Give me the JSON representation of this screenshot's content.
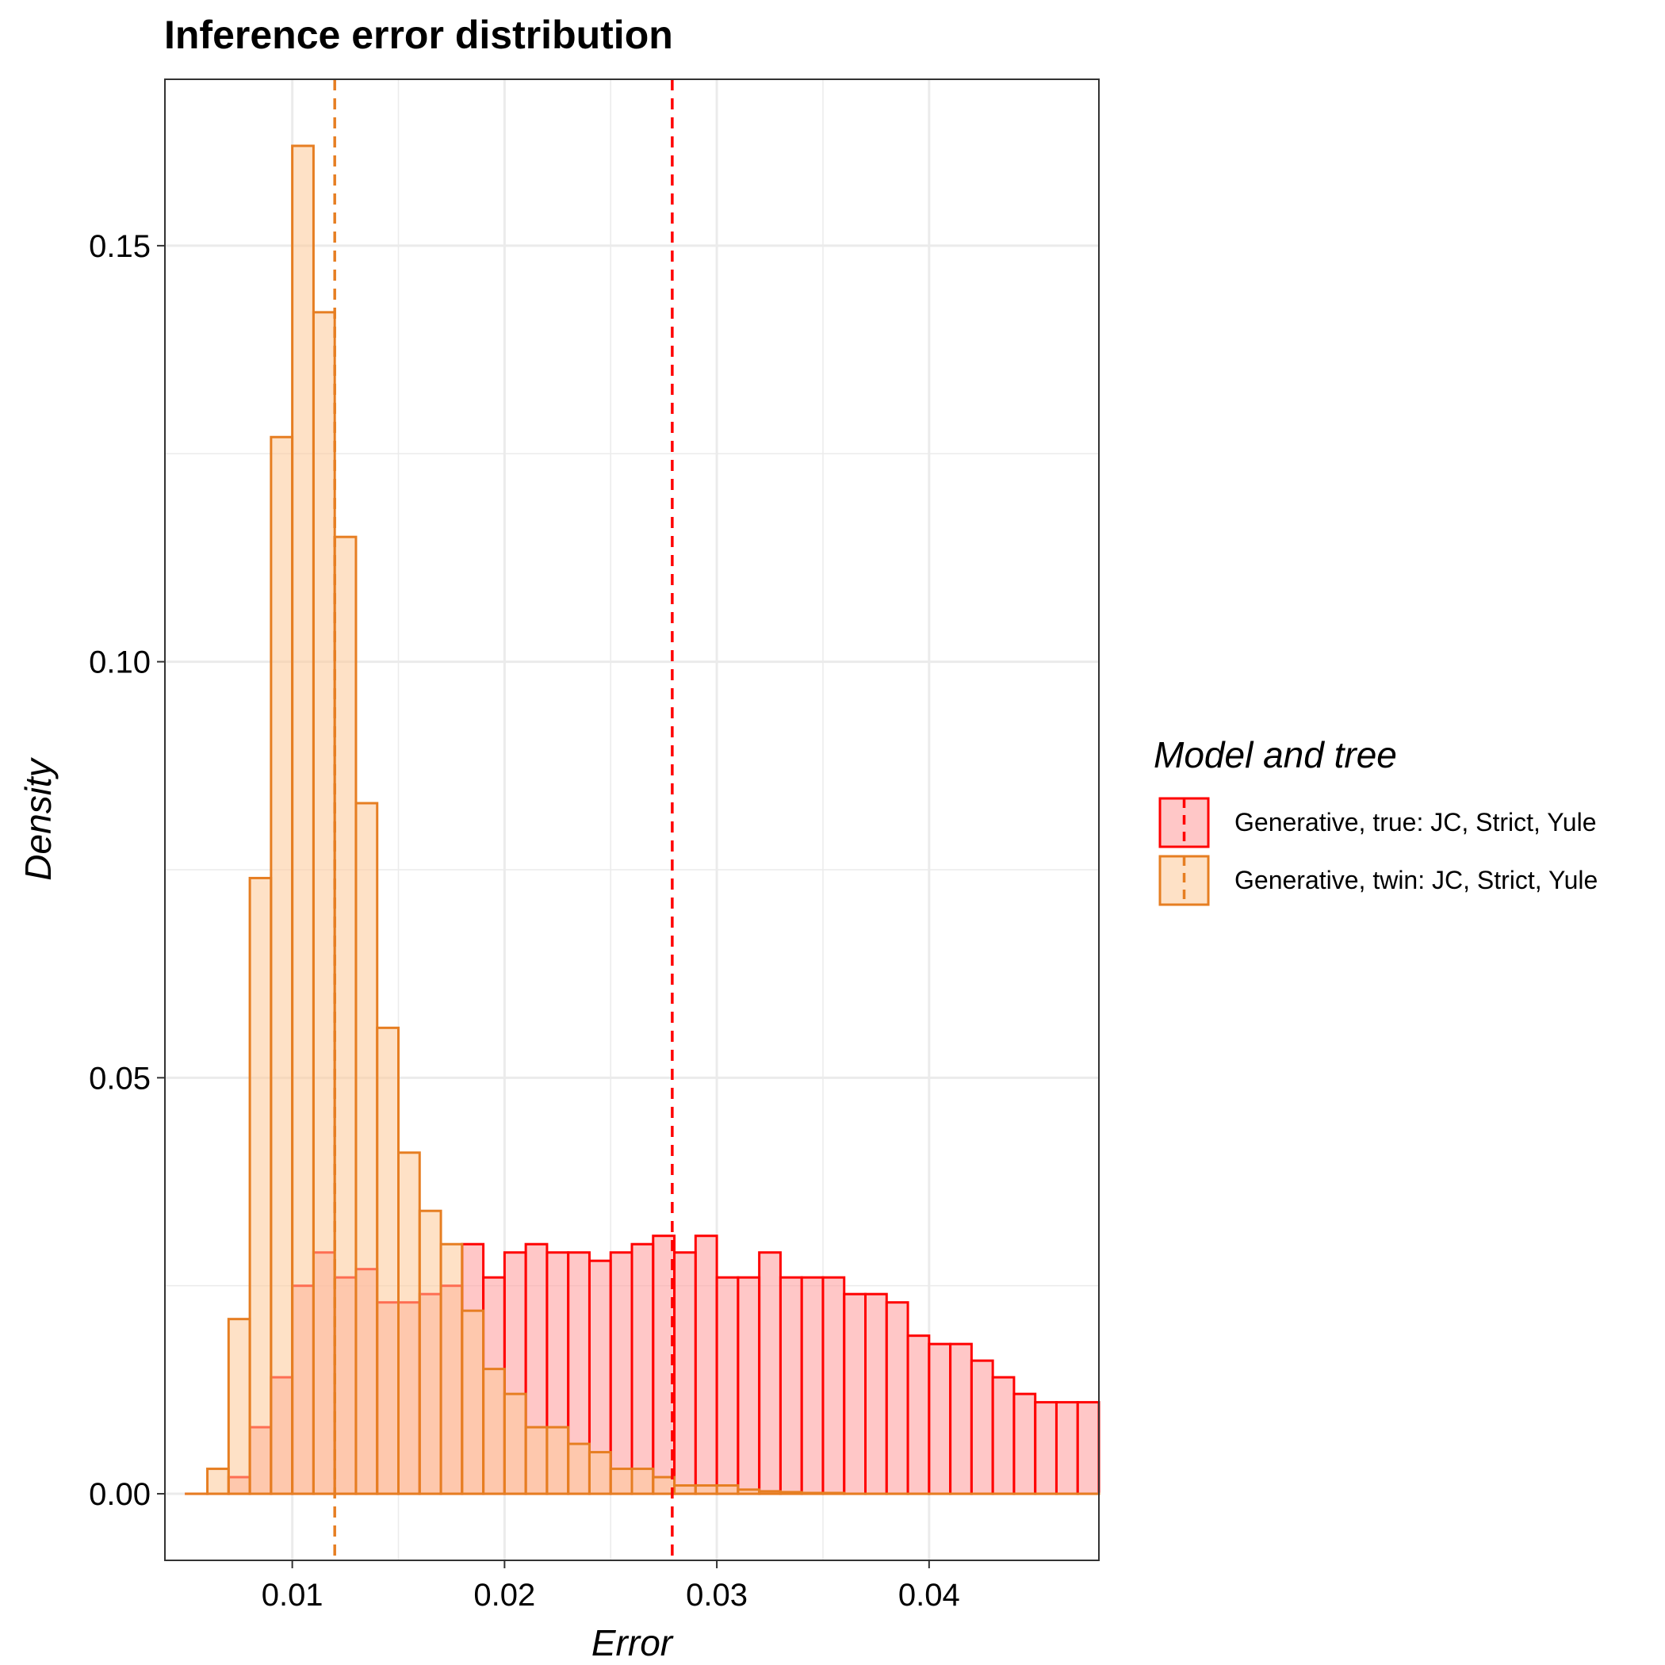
{
  "chart_data": {
    "type": "bar",
    "title": "Inference error distribution",
    "xlabel": "Error",
    "ylabel": "Density",
    "xlim": [
      0.004,
      0.048
    ],
    "ylim": [
      -0.008,
      0.17
    ],
    "x_ticks": [
      {
        "value": 0.01,
        "label": "0.01"
      },
      {
        "value": 0.02,
        "label": "0.02"
      },
      {
        "value": 0.03,
        "label": "0.03"
      },
      {
        "value": 0.04,
        "label": "0.04"
      }
    ],
    "y_ticks": [
      {
        "value": 0.0,
        "label": "0.00"
      },
      {
        "value": 0.05,
        "label": "0.05"
      },
      {
        "value": 0.1,
        "label": "0.10"
      },
      {
        "value": 0.15,
        "label": "0.15"
      }
    ],
    "grid": true,
    "legend": {
      "title": "Model and tree",
      "position": "right"
    },
    "bin_start": 0.005,
    "bin_width": 0.001,
    "series": [
      {
        "name": "Generative, true: JC, Strict, Yule",
        "fill": "#ff9999",
        "stroke": "#ff0000",
        "mean": 0.0279,
        "values": [
          0.0,
          0.0,
          0.002,
          0.008,
          0.014,
          0.025,
          0.029,
          0.026,
          0.027,
          0.023,
          0.023,
          0.024,
          0.025,
          0.03,
          0.026,
          0.029,
          0.03,
          0.029,
          0.029,
          0.028,
          0.029,
          0.03,
          0.031,
          0.029,
          0.031,
          0.026,
          0.026,
          0.029,
          0.026,
          0.026,
          0.026,
          0.024,
          0.024,
          0.023,
          0.019,
          0.018,
          0.018,
          0.016,
          0.014,
          0.012,
          0.011,
          0.011,
          0.011
        ]
      },
      {
        "name": "Generative, twin: JC, Strict, Yule",
        "fill": "#fdc998",
        "stroke": "#e67e22",
        "mean": 0.012,
        "values": [
          0.0,
          0.003,
          0.021,
          0.074,
          0.127,
          0.162,
          0.142,
          0.115,
          0.083,
          0.056,
          0.041,
          0.034,
          0.03,
          0.022,
          0.015,
          0.012,
          0.008,
          0.008,
          0.006,
          0.005,
          0.003,
          0.003,
          0.002,
          0.001,
          0.001,
          0.001,
          0.0005,
          0.0003,
          0.0002,
          0.0001,
          0.0001,
          0,
          0,
          0,
          0,
          0,
          0,
          0,
          0,
          0,
          0,
          0,
          0
        ]
      }
    ]
  }
}
